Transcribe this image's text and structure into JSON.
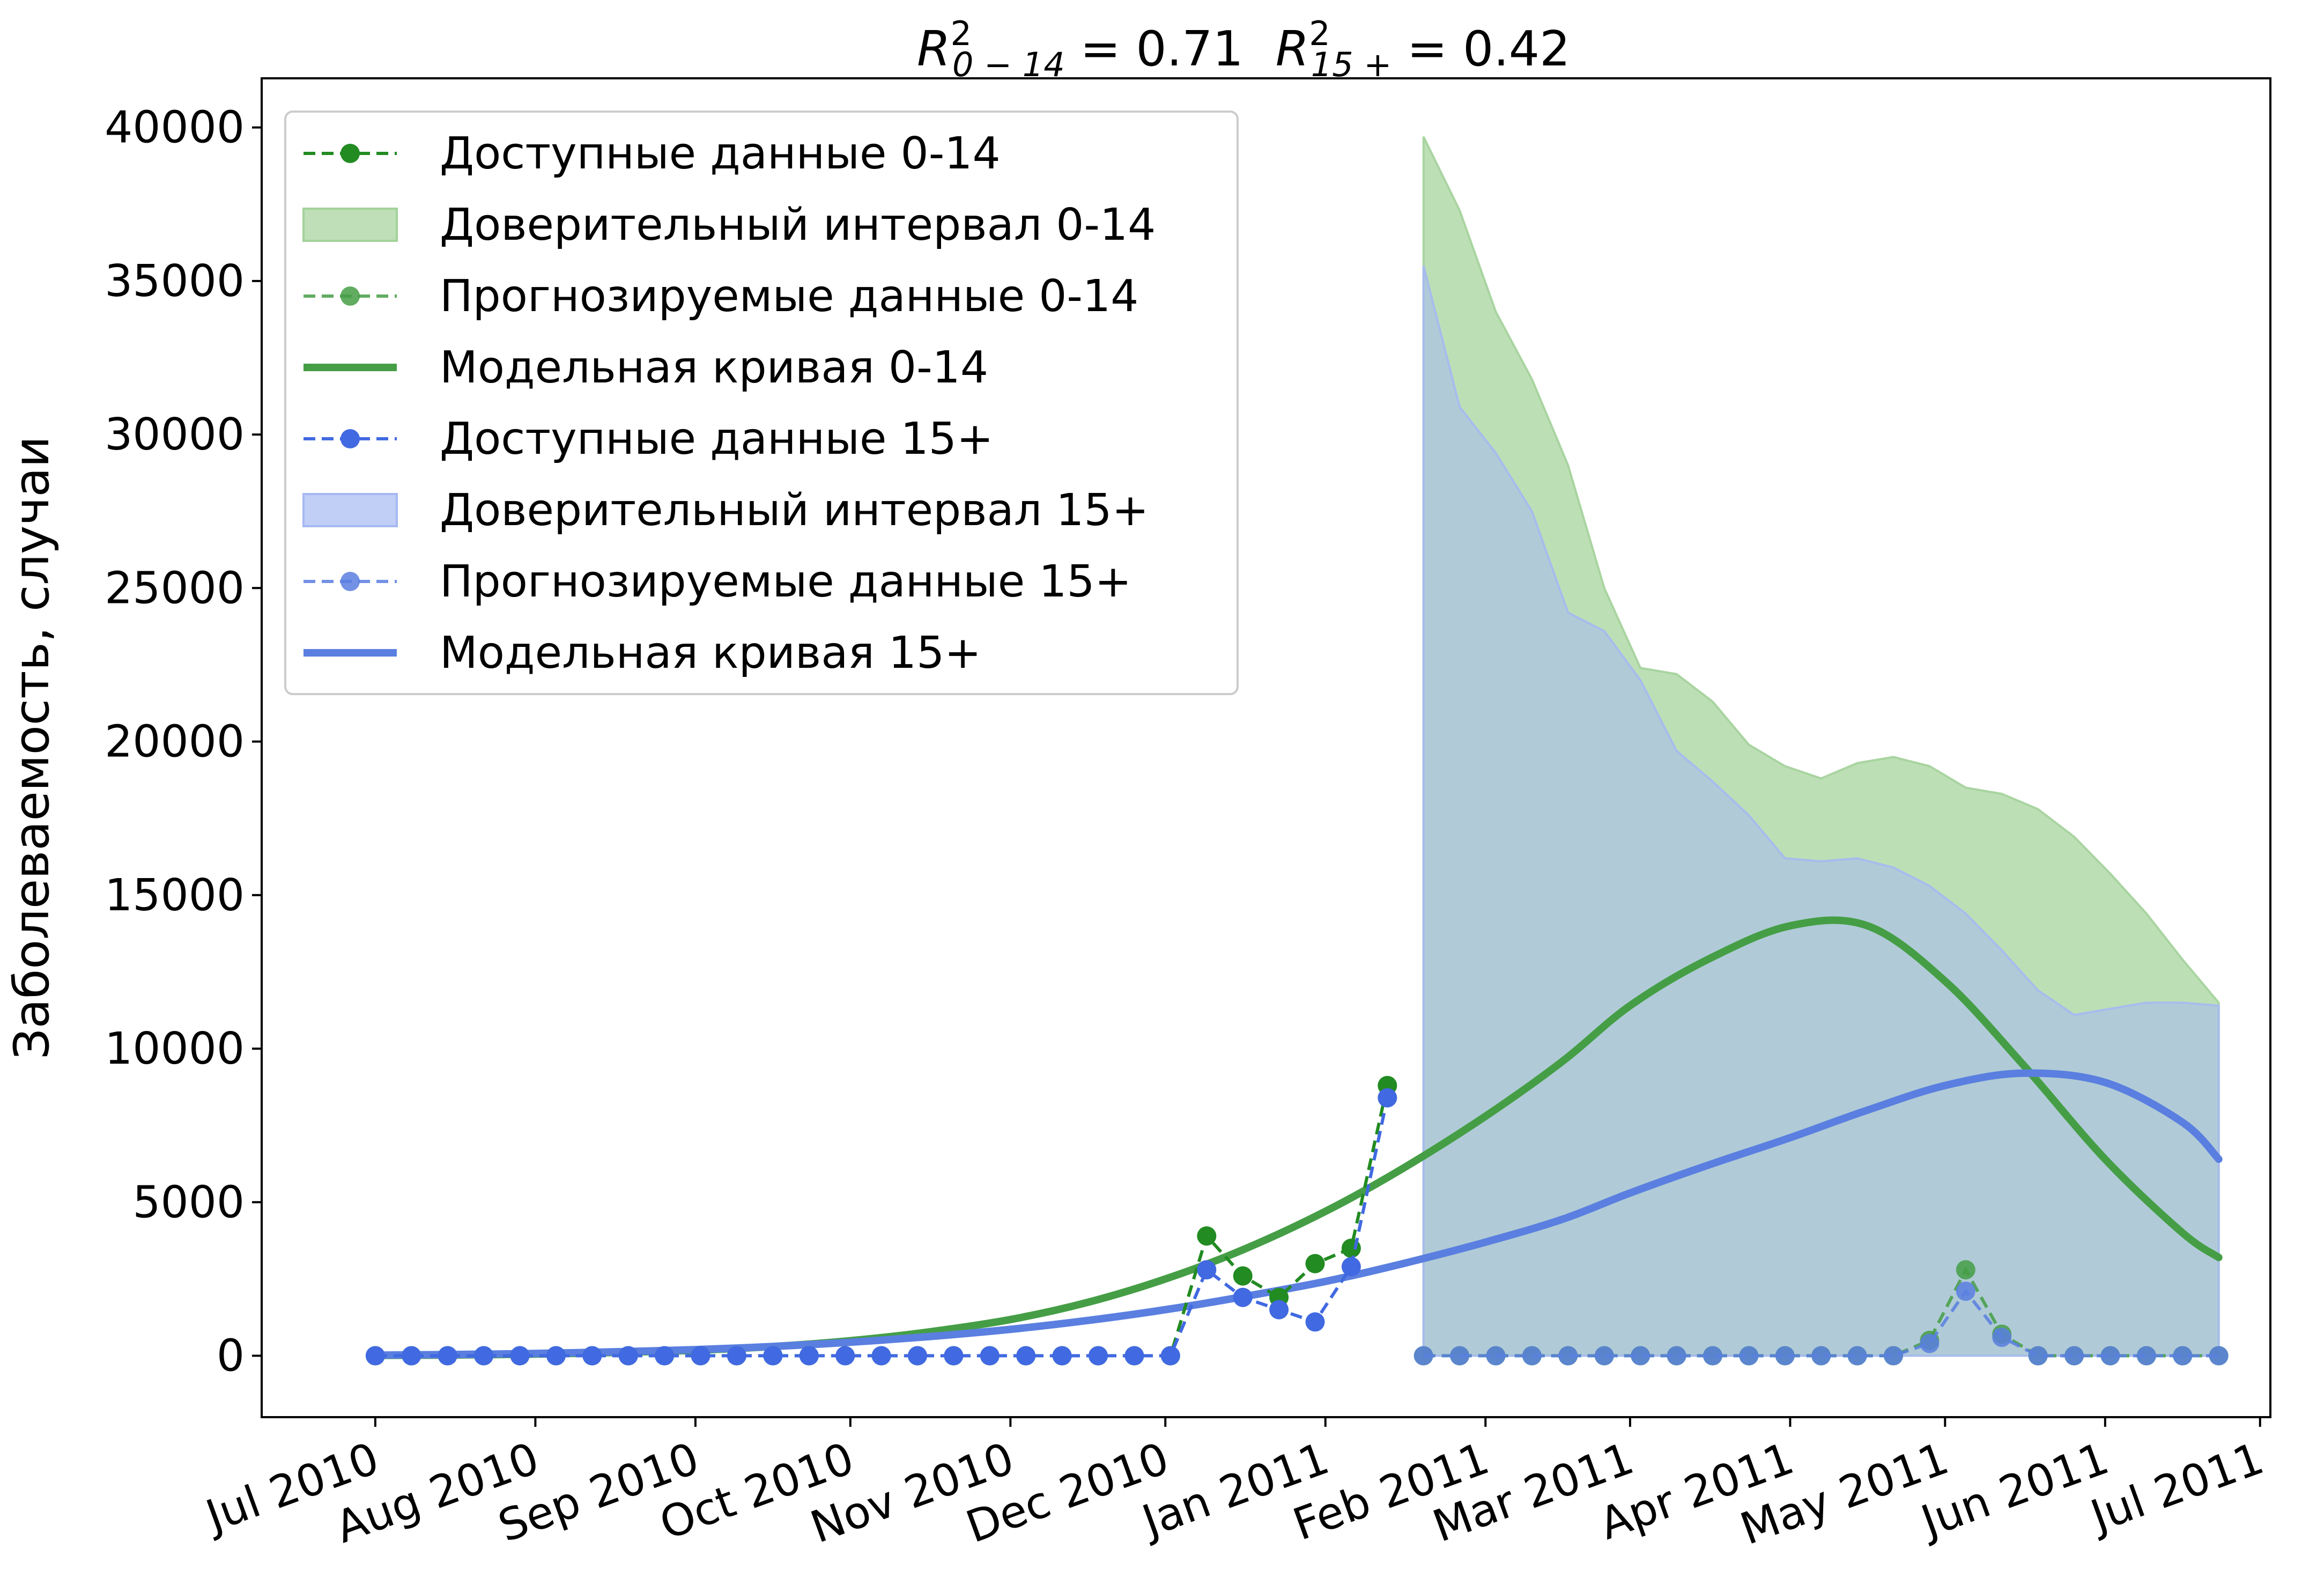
{
  "chart_data": {
    "type": "line",
    "title": "R²₀₋₁₄ = 0.71   R²₁₅₊ = 0.42",
    "title_parts": {
      "r_sym": "R",
      "sup": "2",
      "sub_a": "0 − 14",
      "val_a": " = 0.71",
      "sub_b": "15 +",
      "val_b": " = 0.42"
    },
    "xlabel": "",
    "ylabel": "Заболеваемость, случаи",
    "xlim": [
      "2010-06-09",
      "2011-07-03"
    ],
    "ylim": [
      -2000,
      41600
    ],
    "x_ticks": [
      {
        "date": "2010-07-01",
        "label": "Jul 2010"
      },
      {
        "date": "2010-08-01",
        "label": "Aug 2010"
      },
      {
        "date": "2010-09-01",
        "label": "Sep 2010"
      },
      {
        "date": "2010-10-01",
        "label": "Oct 2010"
      },
      {
        "date": "2010-11-01",
        "label": "Nov 2010"
      },
      {
        "date": "2010-12-01",
        "label": "Dec 2010"
      },
      {
        "date": "2011-01-01",
        "label": "Jan 2011"
      },
      {
        "date": "2011-02-01",
        "label": "Feb 2011"
      },
      {
        "date": "2011-03-01",
        "label": "Mar 2011"
      },
      {
        "date": "2011-04-01",
        "label": "Apr 2011"
      },
      {
        "date": "2011-05-01",
        "label": "May 2011"
      },
      {
        "date": "2011-06-01",
        "label": "Jun 2011"
      },
      {
        "date": "2011-07-01",
        "label": "Jul 2011"
      }
    ],
    "y_ticks": [
      0,
      5000,
      10000,
      15000,
      20000,
      25000,
      30000,
      35000,
      40000
    ],
    "grid": false,
    "legend_position": "top-left",
    "colors": {
      "green_dark": "#228b22",
      "green_model": "#459e45",
      "green_fill": "#a3d29a",
      "blue": "#4169e1",
      "blue_model": "#5a7fe0",
      "blue_fill": "#a6b9f2",
      "overlap_fill": "#97b9c8"
    },
    "series": [
      {
        "name": "Доступные данные 0-14",
        "style": "dashed-markers",
        "color": "#228b22",
        "x": [
          "2010-07-01",
          "2010-07-08",
          "2010-07-15",
          "2010-07-22",
          "2010-07-29",
          "2010-08-05",
          "2010-08-12",
          "2010-08-19",
          "2010-08-26",
          "2010-09-02",
          "2010-09-09",
          "2010-09-16",
          "2010-09-23",
          "2010-09-30",
          "2010-10-07",
          "2010-10-14",
          "2010-10-21",
          "2010-10-28",
          "2010-11-04",
          "2010-11-11",
          "2010-11-18",
          "2010-11-25",
          "2010-12-02",
          "2010-12-09",
          "2010-12-16",
          "2010-12-23",
          "2010-12-30",
          "2011-01-06",
          "2011-01-13"
        ],
        "y": [
          0,
          0,
          0,
          0,
          0,
          0,
          0,
          0,
          0,
          0,
          0,
          0,
          0,
          0,
          0,
          0,
          0,
          0,
          0,
          0,
          0,
          0,
          0,
          3900,
          2600,
          1900,
          3000,
          3500,
          8800
        ]
      },
      {
        "name": "Доверительный интервал 0-14",
        "style": "band",
        "color": "#a3d29a",
        "x": [
          "2011-01-20",
          "2011-01-27",
          "2011-02-03",
          "2011-02-10",
          "2011-02-17",
          "2011-02-24",
          "2011-03-03",
          "2011-03-10",
          "2011-03-17",
          "2011-03-24",
          "2011-03-31",
          "2011-04-07",
          "2011-04-14",
          "2011-04-21",
          "2011-04-28",
          "2011-05-05",
          "2011-05-12",
          "2011-05-19",
          "2011-05-26",
          "2011-06-02",
          "2011-06-09",
          "2011-06-16",
          "2011-06-23"
        ],
        "lower": [
          0,
          0,
          0,
          0,
          0,
          0,
          0,
          0,
          0,
          0,
          0,
          0,
          0,
          0,
          0,
          0,
          0,
          0,
          0,
          0,
          0,
          0,
          0
        ],
        "upper": [
          39700,
          37300,
          34000,
          31800,
          29000,
          25000,
          22400,
          22200,
          21300,
          19900,
          19200,
          18800,
          19300,
          19500,
          19200,
          18500,
          18300,
          17800,
          16900,
          15700,
          14400,
          12900,
          11500
        ]
      },
      {
        "name": "Прогнозируемые данные 0-14",
        "style": "dashed-markers",
        "color": "#459e45",
        "x": [
          "2011-01-20",
          "2011-01-27",
          "2011-02-03",
          "2011-02-10",
          "2011-02-17",
          "2011-02-24",
          "2011-03-03",
          "2011-03-10",
          "2011-03-17",
          "2011-03-24",
          "2011-03-31",
          "2011-04-07",
          "2011-04-14",
          "2011-04-21",
          "2011-04-28",
          "2011-05-05",
          "2011-05-12",
          "2011-05-19",
          "2011-05-26",
          "2011-06-02",
          "2011-06-09",
          "2011-06-16",
          "2011-06-23"
        ],
        "y": [
          0,
          0,
          0,
          0,
          0,
          0,
          0,
          0,
          0,
          0,
          0,
          0,
          0,
          0,
          500,
          2800,
          700,
          0,
          0,
          0,
          0,
          0,
          0
        ]
      },
      {
        "name": "Модельная кривая 0-14",
        "style": "line",
        "color": "#459e45",
        "x": [
          "2010-07-01",
          "2010-07-16",
          "2010-08-01",
          "2010-08-16",
          "2010-09-01",
          "2010-09-16",
          "2010-10-01",
          "2010-10-16",
          "2010-11-01",
          "2010-11-16",
          "2010-12-01",
          "2010-12-16",
          "2011-01-01",
          "2011-01-16",
          "2011-02-01",
          "2011-02-16",
          "2011-03-01",
          "2011-03-16",
          "2011-04-01",
          "2011-04-16",
          "2011-05-01",
          "2011-05-16",
          "2011-06-01",
          "2011-06-16",
          "2011-06-23"
        ],
        "y": [
          10,
          25,
          55,
          105,
          180,
          300,
          490,
          770,
          1180,
          1740,
          2500,
          3450,
          4700,
          6100,
          7800,
          9600,
          11400,
          12900,
          14000,
          14000,
          12200,
          9500,
          6400,
          4000,
          3200
        ]
      },
      {
        "name": "Доступные данные 15+",
        "style": "dashed-markers",
        "color": "#4169e1",
        "x": [
          "2010-07-01",
          "2010-07-08",
          "2010-07-15",
          "2010-07-22",
          "2010-07-29",
          "2010-08-05",
          "2010-08-12",
          "2010-08-19",
          "2010-08-26",
          "2010-09-02",
          "2010-09-09",
          "2010-09-16",
          "2010-09-23",
          "2010-09-30",
          "2010-10-07",
          "2010-10-14",
          "2010-10-21",
          "2010-10-28",
          "2010-11-04",
          "2010-11-11",
          "2010-11-18",
          "2010-11-25",
          "2010-12-02",
          "2010-12-09",
          "2010-12-16",
          "2010-12-23",
          "2010-12-30",
          "2011-01-06",
          "2011-01-13"
        ],
        "y": [
          0,
          0,
          0,
          0,
          0,
          0,
          0,
          0,
          0,
          0,
          0,
          0,
          0,
          0,
          0,
          0,
          0,
          0,
          0,
          0,
          0,
          0,
          0,
          2800,
          1900,
          1500,
          1100,
          2900,
          8400
        ]
      },
      {
        "name": "Доверительный интервал 15+",
        "style": "band",
        "color": "#a6b9f2",
        "x": [
          "2011-01-20",
          "2011-01-27",
          "2011-02-03",
          "2011-02-10",
          "2011-02-17",
          "2011-02-24",
          "2011-03-03",
          "2011-03-10",
          "2011-03-17",
          "2011-03-24",
          "2011-03-31",
          "2011-04-07",
          "2011-04-14",
          "2011-04-21",
          "2011-04-28",
          "2011-05-05",
          "2011-05-12",
          "2011-05-19",
          "2011-05-26",
          "2011-06-02",
          "2011-06-09",
          "2011-06-16",
          "2011-06-23"
        ],
        "lower": [
          0,
          0,
          0,
          0,
          0,
          0,
          0,
          0,
          0,
          0,
          0,
          0,
          0,
          0,
          0,
          0,
          0,
          0,
          0,
          0,
          0,
          0,
          0
        ],
        "upper": [
          35500,
          30900,
          29400,
          27500,
          24200,
          23600,
          22000,
          19700,
          18700,
          17600,
          16200,
          16100,
          16200,
          15900,
          15300,
          14400,
          13200,
          11900,
          11100,
          11300,
          11500,
          11500,
          11400
        ]
      },
      {
        "name": "Прогнозируемые данные 15+",
        "style": "dashed-markers",
        "color": "#5a7fe0",
        "x": [
          "2011-01-20",
          "2011-01-27",
          "2011-02-03",
          "2011-02-10",
          "2011-02-17",
          "2011-02-24",
          "2011-03-03",
          "2011-03-10",
          "2011-03-17",
          "2011-03-24",
          "2011-03-31",
          "2011-04-07",
          "2011-04-14",
          "2011-04-21",
          "2011-04-28",
          "2011-05-05",
          "2011-05-12",
          "2011-05-19",
          "2011-05-26",
          "2011-06-02",
          "2011-06-09",
          "2011-06-16",
          "2011-06-23"
        ],
        "y": [
          0,
          0,
          0,
          0,
          0,
          0,
          0,
          0,
          0,
          0,
          0,
          0,
          0,
          0,
          400,
          2100,
          600,
          0,
          0,
          0,
          0,
          0,
          0
        ]
      },
      {
        "name": "Модельная кривая 15+",
        "style": "line",
        "color": "#5a7fe0",
        "x": [
          "2010-07-01",
          "2010-07-16",
          "2010-08-01",
          "2010-08-16",
          "2010-09-01",
          "2010-09-16",
          "2010-10-01",
          "2010-10-16",
          "2010-11-01",
          "2010-11-16",
          "2010-12-01",
          "2010-12-16",
          "2011-01-01",
          "2011-01-16",
          "2011-02-01",
          "2011-02-16",
          "2011-03-01",
          "2011-03-16",
          "2011-04-01",
          "2011-04-16",
          "2011-05-01",
          "2011-05-16",
          "2011-06-01",
          "2011-06-16",
          "2011-06-23"
        ],
        "y": [
          20,
          40,
          75,
          125,
          200,
          300,
          440,
          620,
          860,
          1150,
          1500,
          1920,
          2420,
          3000,
          3700,
          4450,
          5300,
          6200,
          7100,
          8000,
          8800,
          9200,
          8900,
          7600,
          6400
        ]
      }
    ]
  }
}
